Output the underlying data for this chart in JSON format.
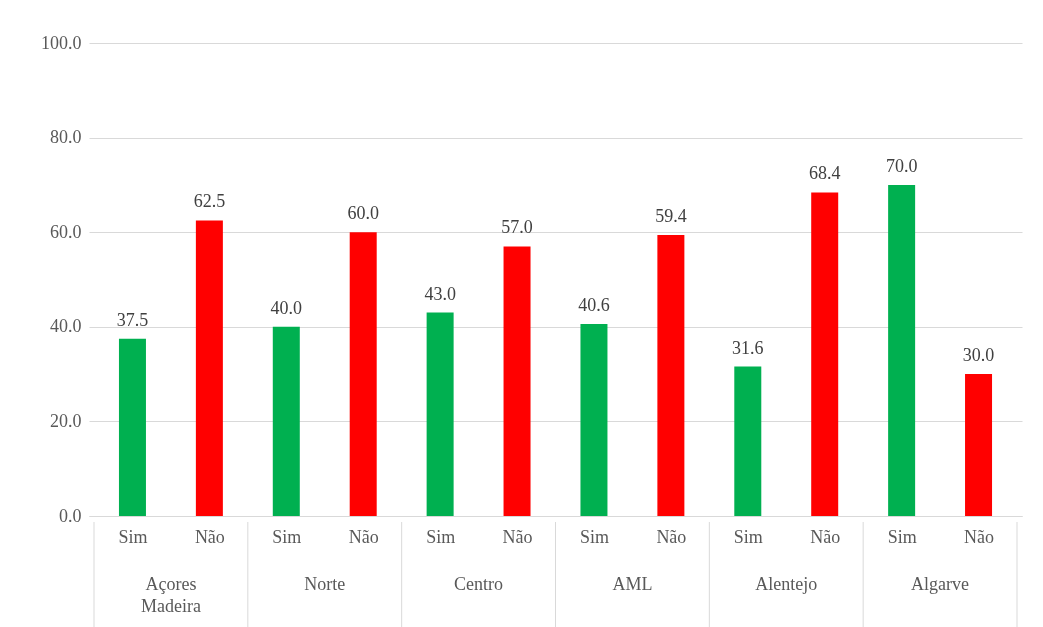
{
  "chart_data": {
    "type": "bar",
    "categories": [
      "Sim",
      "Não",
      "Sim",
      "Não",
      "Sim",
      "Não",
      "Sim",
      "Não",
      "Sim",
      "Não",
      "Sim",
      "Não"
    ],
    "values": [
      37.5,
      62.5,
      40.0,
      60.0,
      43.0,
      57.0,
      40.6,
      59.4,
      31.6,
      68.4,
      70.0,
      30.0
    ],
    "colors": [
      "#00b050",
      "#ff0000",
      "#00b050",
      "#ff0000",
      "#00b050",
      "#ff0000",
      "#00b050",
      "#ff0000",
      "#00b050",
      "#ff0000",
      "#00b050",
      "#ff0000"
    ],
    "value_labels": [
      "37.5",
      "62.5",
      "40.0",
      "60.0",
      "43.0",
      "57.0",
      "40.6",
      "59.4",
      "31.6",
      "68.4",
      "70.0",
      "30.0"
    ],
    "annotations": [
      "Açores Madeira",
      "Norte",
      "Centro",
      "AML",
      "Alentejo",
      "Algarve"
    ],
    "ylim": [
      0,
      100
    ],
    "yticks": [
      {
        "value": 0,
        "label": "0.0"
      },
      {
        "value": 20,
        "label": "20.0"
      },
      {
        "value": 40,
        "label": "40.0"
      },
      {
        "value": 60,
        "label": "60.0"
      },
      {
        "value": 80,
        "label": "80.0"
      },
      {
        "value": 100,
        "label": "100.0"
      }
    ],
    "grid": "y"
  }
}
